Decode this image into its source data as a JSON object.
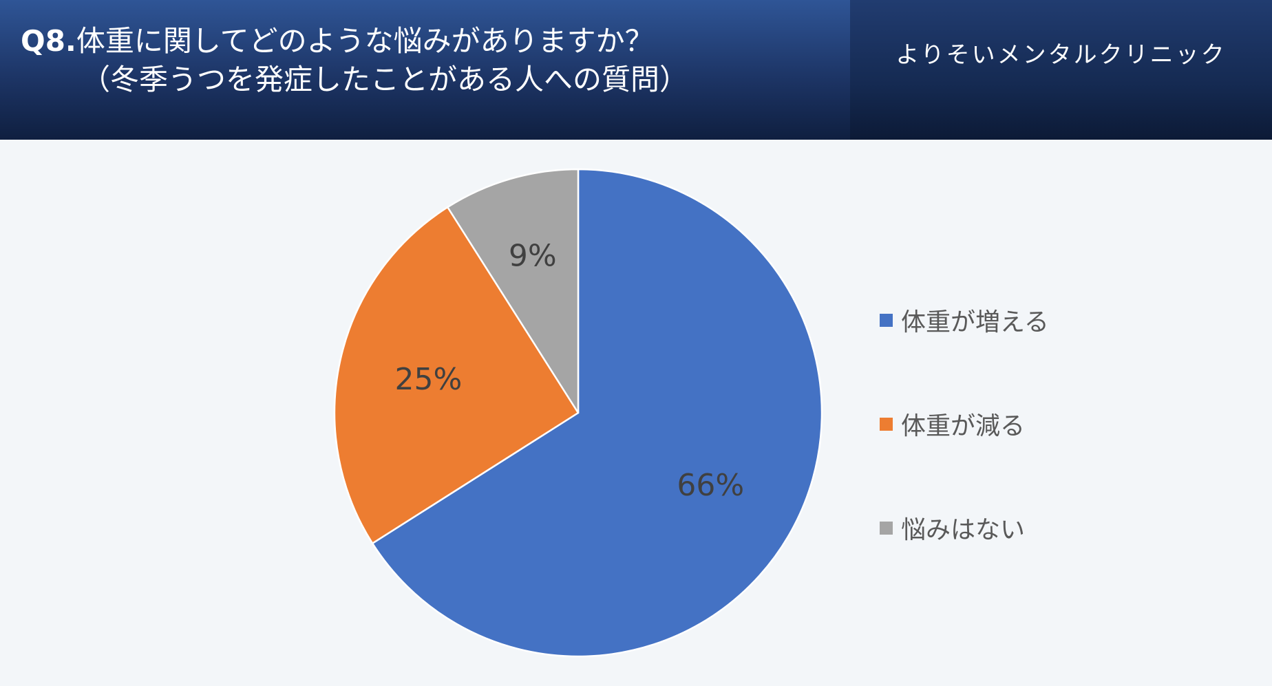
{
  "header": {
    "question_number": "Q8.",
    "title_line1": "体重に関してどのような悩みがありますか？",
    "title_line2": "（冬季うつを発症したことがある人への質問）",
    "clinic_name": "よりそいメンタルクリニック"
  },
  "colors": {
    "header_bg": "#1d3566",
    "background": "#f3f6f9"
  },
  "chart_data": {
    "type": "pie",
    "start_angle_deg": 0,
    "direction": "clockwise",
    "legend_position": "right",
    "slices": [
      {
        "label": "体重が増える",
        "value": 66,
        "display": "66%",
        "color": "#4472c4"
      },
      {
        "label": "体重が減る",
        "value": 25,
        "display": "25%",
        "color": "#ed7d31"
      },
      {
        "label": "悩みはない",
        "value": 9,
        "display": "9%",
        "color": "#a5a5a5"
      }
    ]
  }
}
